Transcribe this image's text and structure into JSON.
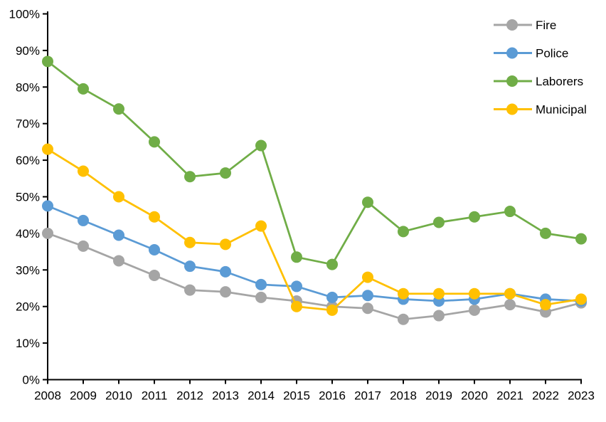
{
  "chart_data": {
    "type": "line",
    "title": "",
    "xlabel": "",
    "ylabel": "",
    "x": [
      2008,
      2009,
      2010,
      2011,
      2012,
      2013,
      2014,
      2015,
      2016,
      2017,
      2018,
      2019,
      2020,
      2021,
      2022,
      2023
    ],
    "x_tick_labels": [
      "2008",
      "2009",
      "2010",
      "2011",
      "2012",
      "2013",
      "2014",
      "2015",
      "2016",
      "2017",
      "2018",
      "2019",
      "2020",
      "2021",
      "2022",
      "2023"
    ],
    "ylim": [
      0,
      100
    ],
    "ytick_step": 10,
    "y_tick_labels": [
      "0%",
      "10%",
      "20%",
      "30%",
      "40%",
      "50%",
      "60%",
      "70%",
      "80%",
      "90%",
      "100%"
    ],
    "grid": false,
    "legend_position": "top-right",
    "axis_color": "#000000",
    "background_color": "#ffffff",
    "series": [
      {
        "name": "Fire",
        "color": "#A5A5A5",
        "values": [
          40,
          36.5,
          32.5,
          28.5,
          24.5,
          24,
          22.5,
          21.5,
          20,
          19.5,
          16.5,
          17.5,
          19,
          20.5,
          18.5,
          21
        ]
      },
      {
        "name": "Police",
        "color": "#5B9BD5",
        "values": [
          47.5,
          43.5,
          39.5,
          35.5,
          31,
          29.5,
          26,
          25.5,
          22.5,
          23,
          22,
          21.5,
          22,
          23.5,
          22,
          21.5
        ]
      },
      {
        "name": "Laborers",
        "color": "#70AD47",
        "values": [
          87,
          79.5,
          74,
          65,
          55.5,
          56.5,
          64,
          33.5,
          31.5,
          48.5,
          40.5,
          43,
          44.5,
          46,
          40,
          38.5
        ]
      },
      {
        "name": "Municipal",
        "color": "#FFC000",
        "values": [
          63,
          57,
          50,
          44.5,
          37.5,
          37,
          42,
          20,
          19,
          28,
          23.5,
          23.5,
          23.5,
          23.5,
          20.5,
          22
        ]
      }
    ]
  }
}
